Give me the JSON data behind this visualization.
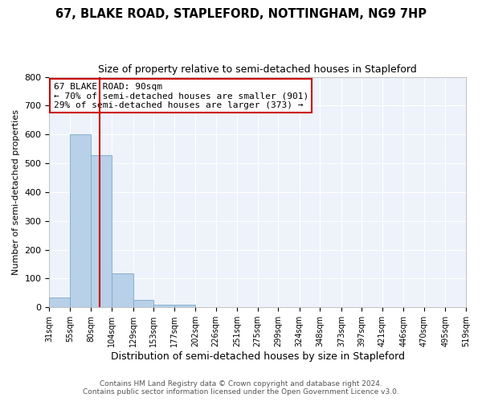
{
  "title1": "67, BLAKE ROAD, STAPLEFORD, NOTTINGHAM, NG9 7HP",
  "title2": "Size of property relative to semi-detached houses in Stapleford",
  "xlabel": "Distribution of semi-detached houses by size in Stapleford",
  "ylabel": "Number of semi-detached properties",
  "footer1": "Contains HM Land Registry data © Crown copyright and database right 2024.",
  "footer2": "Contains public sector information licensed under the Open Government Licence v3.0.",
  "bins": [
    31,
    55,
    80,
    104,
    129,
    153,
    177,
    202,
    226,
    251,
    275,
    299,
    324,
    348,
    373,
    397,
    421,
    446,
    470,
    495,
    519
  ],
  "counts": [
    35,
    600,
    527,
    118,
    25,
    10,
    8,
    0,
    0,
    0,
    0,
    0,
    0,
    0,
    0,
    0,
    0,
    0,
    0,
    0
  ],
  "property_size": 90,
  "bar_color": "#b8d0e8",
  "bar_edge_color": "#7aaac8",
  "red_line_color": "#cc0000",
  "annotation_line1": "67 BLAKE ROAD: 90sqm",
  "annotation_line2": "← 70% of semi-detached houses are smaller (901)",
  "annotation_line3": "29% of semi-detached houses are larger (373) →",
  "annotation_box_color": "#cc0000",
  "ylim": [
    0,
    800
  ],
  "yticks": [
    0,
    100,
    200,
    300,
    400,
    500,
    600,
    700,
    800
  ],
  "bg_color": "#eef2fa",
  "grid_color": "#ffffff",
  "title1_fontsize": 10.5,
  "title2_fontsize": 9,
  "tick_labels": [
    "31sqm",
    "55sqm",
    "80sqm",
    "104sqm",
    "129sqm",
    "153sqm",
    "177sqm",
    "202sqm",
    "226sqm",
    "251sqm",
    "275sqm",
    "299sqm",
    "324sqm",
    "348sqm",
    "373sqm",
    "397sqm",
    "421sqm",
    "446sqm",
    "470sqm",
    "495sqm",
    "519sqm"
  ]
}
